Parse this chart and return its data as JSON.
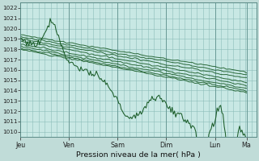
{
  "title": "Pression niveau de la mer( hPa )",
  "bg_color": "#c0dcd8",
  "plot_bg_color": "#c8e8e4",
  "grid_color": "#8bbcb8",
  "line_color": "#1a5c28",
  "ylim": [
    1009.5,
    1022.5
  ],
  "yticks": [
    1010,
    1011,
    1012,
    1013,
    1014,
    1015,
    1016,
    1017,
    1018,
    1019,
    1020,
    1021,
    1022
  ],
  "x_labels": [
    "Jeu",
    "Ven",
    "Sam",
    "Dim",
    "Lun",
    "Ma"
  ],
  "x_tick_pos": [
    0,
    1,
    2,
    3,
    4,
    4.65
  ],
  "xlim": [
    0,
    4.85
  ],
  "num_points": 200,
  "seed": 77
}
